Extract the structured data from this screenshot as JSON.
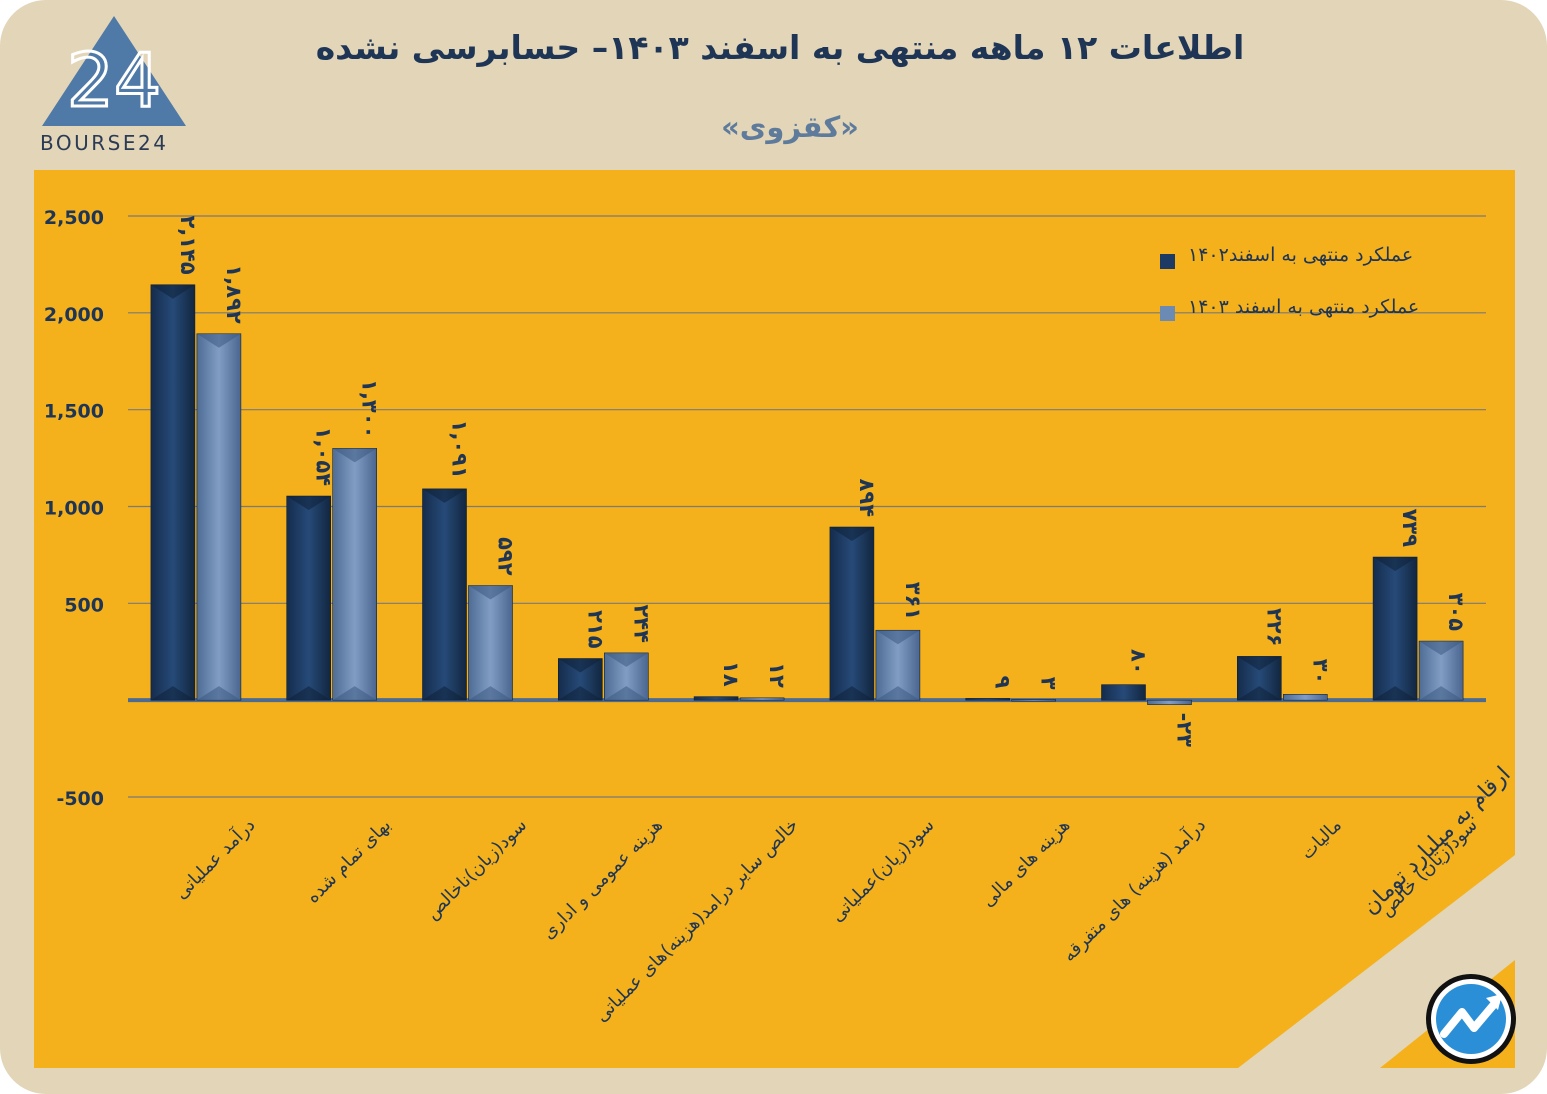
{
  "header": {
    "title": "اطلاعات ۱۲ ماهه منتهی به اسفند  ۱۴۰۳– حسابرسی نشده",
    "subtitle": "«کقزوی»",
    "logo_text": "BOURSE24",
    "logo_numeral": "24"
  },
  "unit_note": "ارقام به میلیارد تومان",
  "colors": {
    "background": "#e2d5b8",
    "panel": "#f4b11b",
    "series_1402": "#1c3a63",
    "series_1403": "#6c8bb4",
    "text": "#1e3556"
  },
  "icons": [
    "logo-triangle-icon",
    "trend-arrow-icon"
  ],
  "chart_data": {
    "type": "bar",
    "title": "اطلاعات ۱۲ ماهه منتهی به اسفند  ۱۴۰۳– حسابرسی نشده",
    "subtitle": "«کقزوی»",
    "xlabel": "",
    "ylabel": "",
    "ylim": [
      -500,
      2500
    ],
    "yticks": [
      2500,
      2000,
      1500,
      1000,
      500,
      -500
    ],
    "ytick_labels": [
      "2,500",
      "2,000",
      "1,500",
      "1,000",
      "500",
      "-500"
    ],
    "grid": true,
    "legend_position": "top-right",
    "categories": [
      "درآمد عملیاتی",
      "بهای تمام شده",
      "سود(زیان)ناخالص",
      "هزینه عمومی و اداری",
      "خالص سایر درامد(هزینه)های عملیاتی",
      "سود(زیان)عملیاتی",
      "هزینه های مالی",
      "درآمد (هزینه) های متفرقه",
      "مالیات",
      "سود(زیان) خالص"
    ],
    "series": [
      {
        "name": "عملکرد منتهی به اسفند۱۴۰۲",
        "values": [
          2145,
          1054,
          1091,
          215,
          18,
          894,
          9,
          80,
          226,
          739
        ],
        "labels": [
          "۲,۱۴۵",
          "۱,۰۵۴",
          "۱,۰۹۱",
          "۲۱۵",
          "۱۸",
          "۸۹۴",
          "۹",
          "۸۰",
          "۲۲۶",
          "۷۳۹"
        ]
      },
      {
        "name": "عملکرد منتهی به اسفند ۱۴۰۳",
        "values": [
          1892,
          1300,
          592,
          244,
          12,
          361,
          3,
          -23,
          30,
          305
        ],
        "labels": [
          "۱,۸۹۲",
          "۱,۳۰۰",
          "۵۹۲",
          "۲۴۴",
          "۱۲",
          "۳۶۱",
          "۳",
          "-۲۳",
          "۳۰",
          "۳۰۵"
        ]
      }
    ]
  }
}
